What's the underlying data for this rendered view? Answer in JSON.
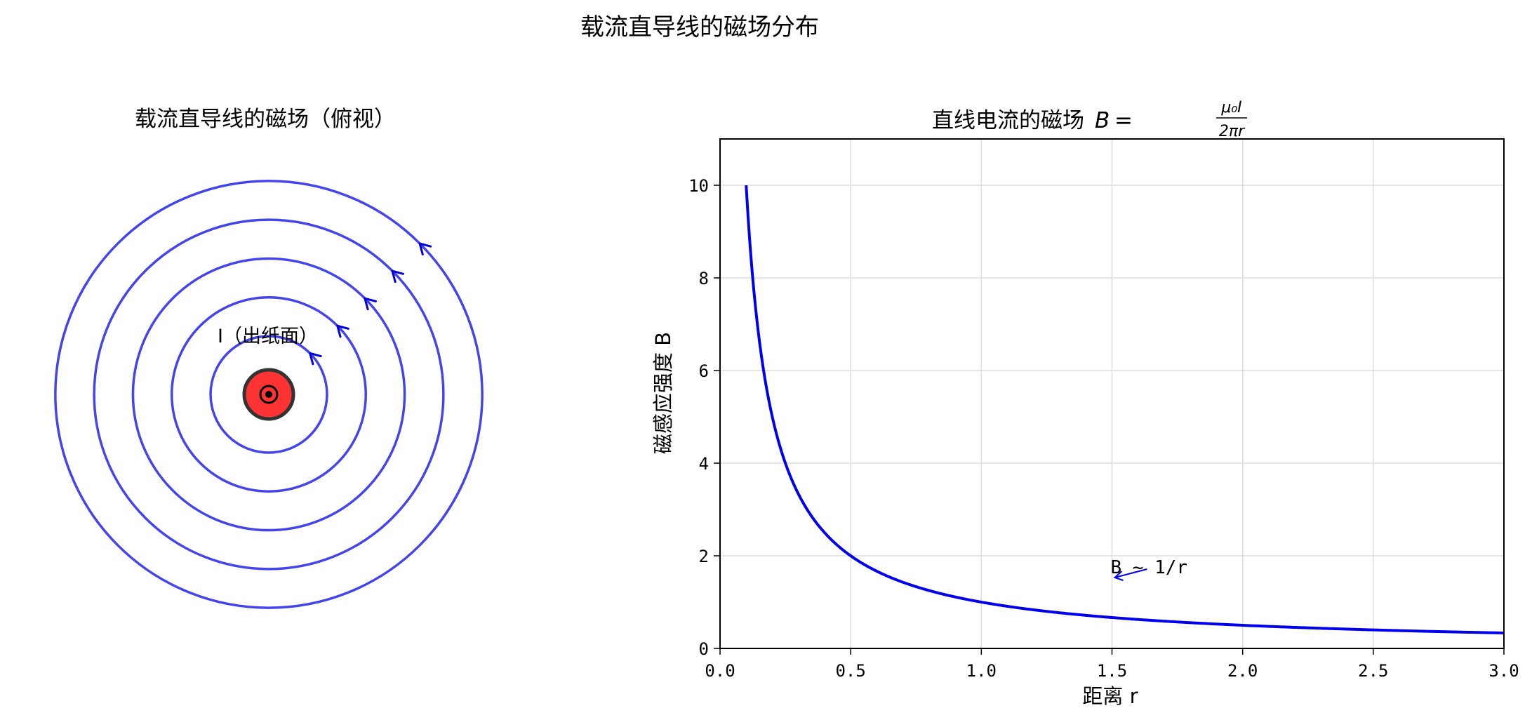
{
  "figure": {
    "suptitle": "载流直导线的磁场分布"
  },
  "chart_data": [
    {
      "type": "diagram",
      "title": "载流直导线的磁场（俯视）",
      "wire_label": "I（出纸面）",
      "field_line_radii": [
        0.15,
        0.25,
        0.35,
        0.45,
        0.55
      ],
      "colors": {
        "field_line": "#4444ee",
        "wire_fill": "#ff3333",
        "wire_stroke": "#333333"
      }
    },
    {
      "type": "line",
      "title_text": "直线电流的磁场",
      "title_formula": {
        "lhs": "B",
        "eq": "=",
        "numerator": "μ₀I",
        "denominator": "2πr"
      },
      "xlabel": "距离 r",
      "ylabel": "磁感应强度 B",
      "xlim": [
        0,
        3
      ],
      "ylim": [
        0,
        11
      ],
      "xticks": [
        "0.0",
        "0.5",
        "1.0",
        "1.5",
        "2.0",
        "2.5",
        "3.0"
      ],
      "yticks": [
        "0",
        "2",
        "4",
        "6",
        "8",
        "10"
      ],
      "grid": true,
      "function": "1/r",
      "x_range": [
        0.1,
        3.0
      ],
      "annotation": {
        "text": "B ~ 1/r",
        "x": 1.5,
        "y": 1.5
      },
      "colors": {
        "line": "#0000ee",
        "annotation": "#0000ee"
      }
    }
  ]
}
